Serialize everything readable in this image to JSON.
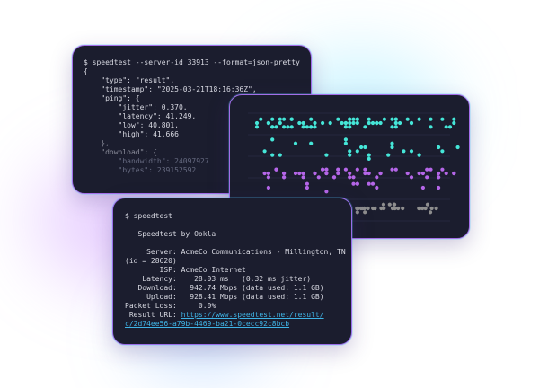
{
  "colors": {
    "window_bg": "#1b1d2e",
    "border": "#a46ee8",
    "cyan": "#45e6d8",
    "purple": "#b566e8",
    "gray": "#8e8e8e",
    "link": "#3fb4e6"
  },
  "json_terminal": {
    "command": "$ speedtest --server-id 33913 --format=json-pretty",
    "lines": [
      "{",
      "    \"type\": \"result\",",
      "    \"timestamp\": \"2025-03-21T18:16:36Z\",",
      "    \"ping\": {",
      "        \"jitter\": 0.370,",
      "        \"latency\": 41.249,",
      "        \"low\": 40.801,",
      "        \"high\": 41.666",
      "    },",
      "    \"download\": {",
      "        \"bandwidth\": 24097927",
      "        \"bytes\": 239152592"
    ]
  },
  "result_terminal": {
    "command": "$ speedtest",
    "title": "   Speedtest by Ookla",
    "server": "     Server: AcmeCo Communications - Millington, TN",
    "server_id": "(id = 28620)",
    "isp": "        ISP: AcmeCo Internet",
    "latency": "    Latency:    28.03 ms   (0.32 ms jitter)",
    "download": "   Download:   942.74 Mbps (data used: 1.1 GB)",
    "upload": "     Upload:   928.41 Mbps (data used: 1.1 GB)",
    "packet_loss": "Packet Loss:     0.0%",
    "result_url_label": " Result URL: ",
    "result_url_1": "https://www.speedtest.net/result/",
    "result_url_2": "c/2d74ee56-a79b-4469-ba21-0cecc92c8bcb"
  }
}
